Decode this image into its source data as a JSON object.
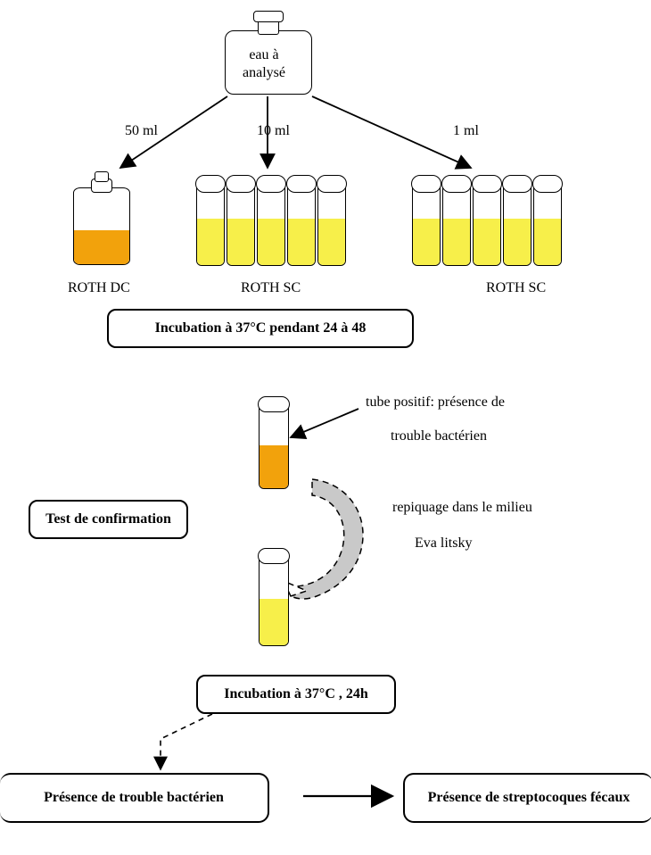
{
  "type": "flowchart",
  "background": "#ffffff",
  "stroke": "#000000",
  "colors": {
    "orange": "#f2a20c",
    "yellow": "#f7ef4a",
    "grey": "#c9c9c9"
  },
  "labels": {
    "flask": "eau à\nanalysé",
    "vol_50": "50 ml",
    "vol_10": "10 ml",
    "vol_1": "1 ml",
    "roth_dc": "ROTH DC",
    "roth_sc1": "ROTH SC",
    "roth_sc2": "ROTH SC",
    "incub1": "Incubation à 37°C pendant 24 à 48",
    "tube_pos": "tube positif: présence de",
    "trouble": "trouble bactérien",
    "confirm": "Test de confirmation",
    "repiquage": "repiquage dans le milieu",
    "eva": "Eva litsky",
    "incub2": "Incubation à 37°C , 24h",
    "presence1": "Présence de trouble bactérien",
    "presence2": "Présence de streptocoques fécaux"
  },
  "font": {
    "family": "Times New Roman",
    "size": 16,
    "bold_size": 16
  }
}
